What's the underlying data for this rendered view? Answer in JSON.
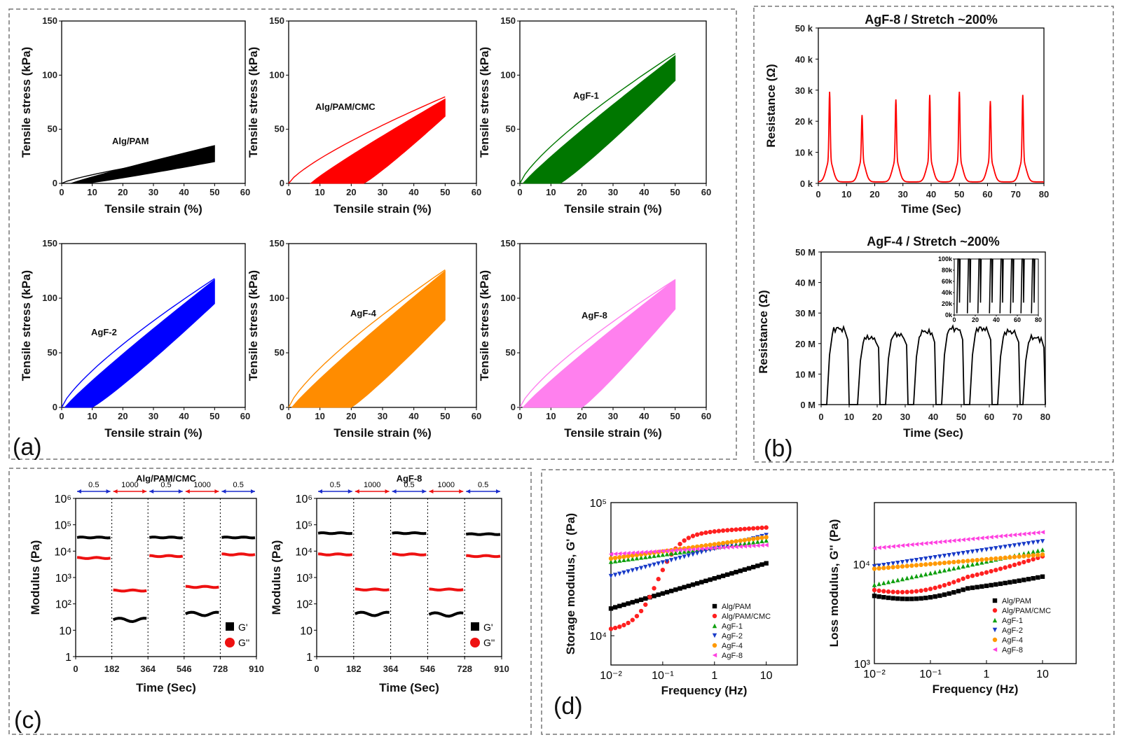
{
  "panel_labels": [
    "(a)",
    "(b)",
    "(c)",
    "(d)"
  ],
  "chart_data": [
    {
      "id": "a1",
      "type": "line",
      "title": "Alg/PAM",
      "xlabel": "Tensile strain (%)",
      "ylabel": "Tensile stress (kPa)",
      "xlim": [
        0,
        60
      ],
      "ylim": [
        0,
        150
      ],
      "xticks": [
        "0",
        "10",
        "20",
        "30",
        "40",
        "50",
        "60"
      ],
      "yticks": [
        "0",
        "50",
        "100",
        "150"
      ],
      "color": "#000000",
      "max_strain": 50,
      "first_cycle_peak": 28,
      "band_peak": [
        20,
        35
      ],
      "residual_strain": [
        3,
        8
      ]
    },
    {
      "id": "a2",
      "type": "line",
      "title": "Alg/PAM/CMC",
      "xlabel": "Tensile strain (%)",
      "ylabel": "Tensile stress (kPa)",
      "xlim": [
        0,
        60
      ],
      "ylim": [
        0,
        150
      ],
      "xticks": [
        "0",
        "10",
        "20",
        "30",
        "40",
        "50",
        "60"
      ],
      "yticks": [
        "0",
        "50",
        "100",
        "150"
      ],
      "color": "#ff0000",
      "max_strain": 50,
      "first_cycle_peak": 80,
      "band_peak": [
        62,
        78
      ],
      "residual_strain": [
        7,
        24
      ]
    },
    {
      "id": "a3",
      "type": "line",
      "title": "AgF-1",
      "xlabel": "Tensile strain (%)",
      "ylabel": "Tensile stress (kPa)",
      "xlim": [
        0,
        60
      ],
      "ylim": [
        0,
        150
      ],
      "xticks": [
        "0",
        "10",
        "20",
        "30",
        "40",
        "50",
        "60"
      ],
      "yticks": [
        "0",
        "50",
        "100",
        "150"
      ],
      "color": "#007700",
      "max_strain": 50,
      "first_cycle_peak": 120,
      "band_peak": [
        95,
        118
      ],
      "residual_strain": [
        1,
        13
      ]
    },
    {
      "id": "a4",
      "type": "line",
      "title": "AgF-2",
      "xlabel": "Tensile strain (%)",
      "ylabel": "Tensile stress (kPa)",
      "xlim": [
        0,
        60
      ],
      "ylim": [
        0,
        150
      ],
      "xticks": [
        "0",
        "10",
        "20",
        "30",
        "40",
        "50",
        "60"
      ],
      "yticks": [
        "0",
        "50",
        "100",
        "150"
      ],
      "color": "#0000ff",
      "max_strain": 50,
      "first_cycle_peak": 118,
      "band_peak": [
        95,
        117
      ],
      "residual_strain": [
        1,
        10
      ]
    },
    {
      "id": "a5",
      "type": "line",
      "title": "AgF-4",
      "xlabel": "Tensile strain (%)",
      "ylabel": "Tensile stress (kPa)",
      "xlim": [
        0,
        60
      ],
      "ylim": [
        0,
        150
      ],
      "xticks": [
        "0",
        "10",
        "20",
        "30",
        "40",
        "50",
        "60"
      ],
      "yticks": [
        "0",
        "50",
        "100",
        "150"
      ],
      "color": "#ff8c00",
      "max_strain": 50,
      "first_cycle_peak": 126,
      "band_peak": [
        80,
        125
      ],
      "residual_strain": [
        1,
        20
      ]
    },
    {
      "id": "a6",
      "type": "line",
      "title": "AgF-8",
      "xlabel": "Tensile strain (%)",
      "ylabel": "Tensile stress (kPa)",
      "xlim": [
        0,
        60
      ],
      "ylim": [
        0,
        150
      ],
      "xticks": [
        "0",
        "10",
        "20",
        "30",
        "40",
        "50",
        "60"
      ],
      "yticks": [
        "0",
        "50",
        "100",
        "150"
      ],
      "color": "#ff80ee",
      "max_strain": 50,
      "first_cycle_peak": 117,
      "band_peak": [
        90,
        117
      ],
      "residual_strain": [
        1,
        20
      ]
    },
    {
      "id": "b1",
      "type": "line",
      "title": "AgF-8 / Stretch ~200%",
      "xlabel": "Time (Sec)",
      "ylabel": "Resistance (Ω)",
      "xlim": [
        0,
        80
      ],
      "ylim": [
        0,
        50000
      ],
      "xticks": [
        "0",
        "10",
        "20",
        "30",
        "40",
        "50",
        "60",
        "70",
        "80"
      ],
      "yticks": [
        "0 k",
        "10 k",
        "20 k",
        "30 k",
        "40 k",
        "50 k"
      ],
      "color": "#ff0000",
      "baseline": 500,
      "peaks": [
        {
          "t": 4,
          "r": 29000
        },
        {
          "t": 15.5,
          "r": 21500
        },
        {
          "t": 27.5,
          "r": 26500
        },
        {
          "t": 39.5,
          "r": 28000
        },
        {
          "t": 50,
          "r": 29000
        },
        {
          "t": 61,
          "r": 26000
        },
        {
          "t": 72.5,
          "r": 28000
        }
      ]
    },
    {
      "id": "b2",
      "type": "line",
      "title": "AgF-4 / Stretch ~200%",
      "xlabel": "Time (Sec)",
      "ylabel": "Resistance (Ω)",
      "xlim": [
        0,
        80
      ],
      "ylim": [
        0,
        50
      ],
      "xticks": [
        "0",
        "10",
        "20",
        "30",
        "40",
        "50",
        "60",
        "70",
        "80"
      ],
      "yticks": [
        "0 M",
        "10 M",
        "20 M",
        "30 M",
        "40 M",
        "50 M"
      ],
      "color": "#000000",
      "pulses": [
        {
          "t0": 2,
          "t1": 10,
          "r": 25
        },
        {
          "t0": 13,
          "t1": 21,
          "r": 22
        },
        {
          "t0": 23,
          "t1": 31,
          "r": 23
        },
        {
          "t0": 33,
          "t1": 41,
          "r": 24
        },
        {
          "t0": 43,
          "t1": 51,
          "r": 25
        },
        {
          "t0": 53,
          "t1": 61,
          "r": 25
        },
        {
          "t0": 63,
          "t1": 71,
          "r": 24
        },
        {
          "t0": 72,
          "t1": 80,
          "r": 22
        }
      ],
      "inset": {
        "xlim": [
          0,
          80
        ],
        "ylim": [
          0,
          100
        ],
        "xticks": [
          "0",
          "20",
          "40",
          "60",
          "80"
        ],
        "yticks": [
          "0k",
          "20k",
          "40k",
          "60k",
          "80k",
          "100k"
        ],
        "spikes": [
          5,
          15,
          25,
          36,
          46,
          56,
          66,
          76
        ]
      }
    },
    {
      "id": "c1",
      "type": "scatter",
      "title": "Alg/PAM/CMC",
      "xlabel": "Time (Sec)",
      "ylabel": "Modulus (Pa)",
      "xlim": [
        0,
        910
      ],
      "ylim_log": [
        0,
        6
      ],
      "xticks": [
        "0",
        "182",
        "364",
        "546",
        "728",
        "910"
      ],
      "yticks": [
        "1",
        "10",
        "10²",
        "10³",
        "10⁴",
        "10⁵",
        "10⁶"
      ],
      "segment_labels": [
        "0.5",
        "1000",
        "0.5",
        "1000",
        "0.5"
      ],
      "segment_bounds": [
        0,
        182,
        364,
        546,
        728,
        910
      ],
      "G_prime": [
        33000,
        25,
        33000,
        42,
        33000
      ],
      "G_double_prime": [
        5500,
        320,
        6500,
        440,
        7500
      ],
      "legend": [
        "G'",
        "G''"
      ]
    },
    {
      "id": "c2",
      "type": "scatter",
      "title": "AgF-8",
      "xlabel": "Time (Sec)",
      "ylabel": "Modulus (Pa)",
      "xlim": [
        0,
        910
      ],
      "ylim_log": [
        0,
        6
      ],
      "xticks": [
        "0",
        "182",
        "364",
        "546",
        "728",
        "910"
      ],
      "yticks": [
        "1",
        "10",
        "10²",
        "10³",
        "10⁴",
        "10⁵",
        "10⁶"
      ],
      "segment_labels": [
        "0.5",
        "1000",
        "0.5",
        "1000",
        "0.5"
      ],
      "segment_bounds": [
        0,
        182,
        364,
        546,
        728,
        910
      ],
      "G_prime": [
        48000,
        42,
        48000,
        40,
        44000
      ],
      "G_double_prime": [
        7500,
        350,
        7500,
        350,
        6500
      ],
      "legend": [
        "G'",
        "G''"
      ]
    },
    {
      "id": "d1",
      "type": "scatter",
      "title": "",
      "xlabel": "Frequency (Hz)",
      "ylabel": "Storage modulus, G' (Pa)",
      "xlim_log": [
        -2,
        1.6
      ],
      "ylim_log": [
        3.78,
        5
      ],
      "xticks": [
        "10⁻²",
        "10⁻¹",
        "1",
        "10"
      ],
      "yticks": [
        "10⁴",
        "10⁵"
      ],
      "series": [
        {
          "name": "Alg/PAM",
          "color": "#000000",
          "marker": "square",
          "start": 16000,
          "end": 35000,
          "shape": "linear"
        },
        {
          "name": "Alg/PAM/CMC",
          "color": "#ff2020",
          "marker": "circle",
          "start": 11000,
          "end": 65000,
          "shape": "sigmoid"
        },
        {
          "name": "AgF-1",
          "color": "#10a010",
          "marker": "triangle-up",
          "start": 36000,
          "end": 52000,
          "shape": "linear"
        },
        {
          "name": "AgF-2",
          "color": "#1a3cc8",
          "marker": "triangle-down",
          "start": 28000,
          "end": 57000,
          "shape": "linear"
        },
        {
          "name": "AgF-4",
          "color": "#ff9900",
          "marker": "circle",
          "start": 38000,
          "end": 55000,
          "shape": "linear"
        },
        {
          "name": "AgF-8",
          "color": "#ff40e0",
          "marker": "triangle-left",
          "start": 41000,
          "end": 48000,
          "shape": "linear"
        }
      ]
    },
    {
      "id": "d2",
      "type": "scatter",
      "title": "",
      "xlabel": "Frequency (Hz)",
      "ylabel": "Loss modulus, G'' (Pa)",
      "xlim_log": [
        -2,
        1.6
      ],
      "ylim_log": [
        3,
        4.62
      ],
      "xticks": [
        "10⁻²",
        "10⁻¹",
        "1",
        "10"
      ],
      "yticks": [
        "10³",
        "10⁴"
      ],
      "series": [
        {
          "name": "Alg/PAM",
          "color": "#000000",
          "marker": "square",
          "start": 4800,
          "end": 7500,
          "shape": "dip"
        },
        {
          "name": "Alg/PAM/CMC",
          "color": "#ff2020",
          "marker": "circle",
          "start": 5500,
          "end": 12000,
          "shape": "dip"
        },
        {
          "name": "AgF-1",
          "color": "#10a010",
          "marker": "triangle-up",
          "start": 6200,
          "end": 14000,
          "shape": "linear"
        },
        {
          "name": "AgF-2",
          "color": "#1a3cc8",
          "marker": "triangle-down",
          "start": 9500,
          "end": 17000,
          "shape": "linear"
        },
        {
          "name": "AgF-4",
          "color": "#ff9900",
          "marker": "circle",
          "start": 9000,
          "end": 12500,
          "shape": "linear"
        },
        {
          "name": "AgF-8",
          "color": "#ff40e0",
          "marker": "triangle-left",
          "start": 14500,
          "end": 21000,
          "shape": "linear"
        }
      ]
    }
  ]
}
